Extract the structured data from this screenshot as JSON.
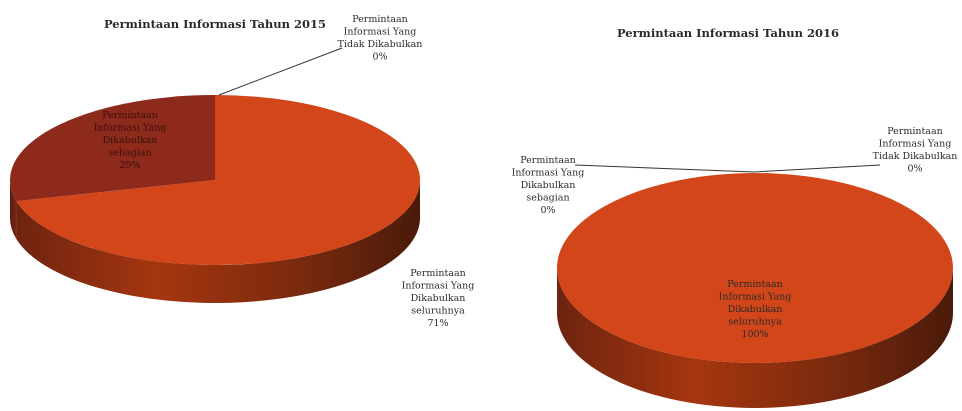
{
  "colors": {
    "full": "#d2461a",
    "partial": "#8e2a1c",
    "rejected": "#c43a10",
    "label_text": "#2b2b2b",
    "leader_line": "#333333"
  },
  "chart_data": [
    {
      "type": "pie",
      "style": "3d",
      "title": "Permintaan Informasi Tahun 2015",
      "slices": [
        {
          "label_lines": [
            "Permintaan",
            "Informasi Yang",
            "Dikabulkan",
            "seluruhnya",
            "71%"
          ],
          "percent": 71,
          "color": "#d2461a"
        },
        {
          "label_lines": [
            "Permintaan",
            "Informasi Yang",
            "Dikabulkan",
            "sebagian",
            "29%"
          ],
          "percent": 29,
          "color": "#8e2a1c"
        },
        {
          "label_lines": [
            "Permintaan",
            "Informasi Yang",
            "Tidak Dikabulkan",
            "0%"
          ],
          "percent": 0,
          "color": "#c43a10"
        }
      ]
    },
    {
      "type": "pie",
      "style": "3d",
      "title": "Permintaan Informasi Tahun 2016",
      "slices": [
        {
          "label_lines": [
            "Permintaan",
            "Informasi Yang",
            "Dikabulkan",
            "seluruhnya",
            "100%"
          ],
          "percent": 100,
          "color": "#d2461a"
        },
        {
          "label_lines": [
            "Permintaan",
            "Informasi Yang",
            "Dikabulkan",
            "sebagian",
            "0%"
          ],
          "percent": 0,
          "color": "#8e2a1c"
        },
        {
          "label_lines": [
            "Permintaan",
            "Informasi Yang",
            "Tidak Dikabulkan",
            "0%"
          ],
          "percent": 0,
          "color": "#c43a10"
        }
      ]
    }
  ]
}
